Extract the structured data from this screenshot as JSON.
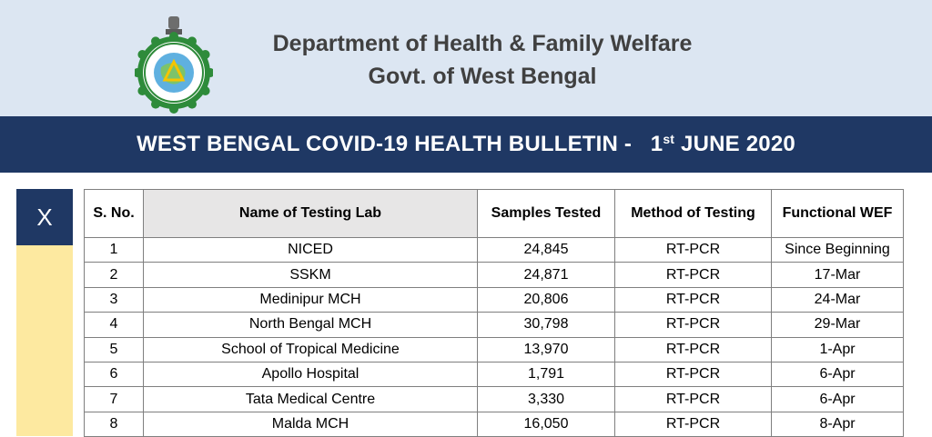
{
  "header": {
    "department": "Department of Health & Family Welfare",
    "government": "Govt. of West Bengal"
  },
  "banner": {
    "title": "WEST BENGAL COVID-19 HEALTH BULLETIN -",
    "day": "1",
    "day_suffix": "st",
    "month_year": "JUNE 2020"
  },
  "sidebar": {
    "section_label": "X"
  },
  "colors": {
    "banner": "#1f3864",
    "header": "#dce6f2",
    "sidebar": "#fde9a0"
  },
  "table": {
    "columns": [
      "S. No.",
      "Name of Testing Lab",
      "Samples Tested",
      "Method of Testing",
      "Functional WEF"
    ],
    "rows": [
      [
        "1",
        "NICED",
        "24,845",
        "RT-PCR",
        "Since Beginning"
      ],
      [
        "2",
        "SSKM",
        "24,871",
        "RT-PCR",
        "17-Mar"
      ],
      [
        "3",
        "Medinipur MCH",
        "20,806",
        "RT-PCR",
        "24-Mar"
      ],
      [
        "4",
        "North Bengal MCH",
        "30,798",
        "RT-PCR",
        "29-Mar"
      ],
      [
        "5",
        "School of Tropical Medicine",
        "13,970",
        "RT-PCR",
        "1-Apr"
      ],
      [
        "6",
        "Apollo Hospital",
        "1,791",
        "RT-PCR",
        "6-Apr"
      ],
      [
        "7",
        "Tata Medical Centre",
        "3,330",
        "RT-PCR",
        "6-Apr"
      ],
      [
        "8",
        "Malda MCH",
        "16,050",
        "RT-PCR",
        "8-Apr"
      ]
    ]
  }
}
